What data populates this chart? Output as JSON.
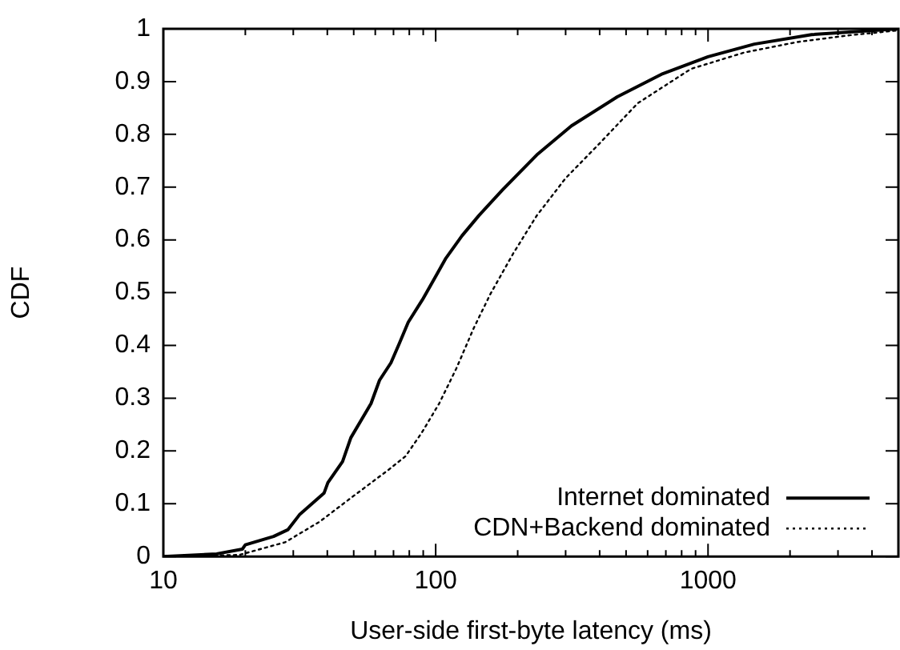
{
  "chart_data": {
    "type": "line",
    "xlabel": "User-side first-byte latency (ms)",
    "ylabel": "CDF",
    "log": "x",
    "xlim": [
      10,
      5000
    ],
    "xticks": [
      10,
      {
        "value": 20,
        "label": null
      },
      {
        "value": 30,
        "label": null
      },
      {
        "value": 40,
        "label": null
      },
      {
        "value": 50,
        "label": null
      },
      {
        "value": 60,
        "label": null
      },
      {
        "value": 70,
        "label": null
      },
      {
        "value": 80,
        "label": null
      },
      {
        "value": 90,
        "label": null
      },
      100,
      {
        "value": 200,
        "label": null
      },
      {
        "value": 300,
        "label": null
      },
      {
        "value": 400,
        "label": null
      },
      {
        "value": 500,
        "label": null
      },
      {
        "value": 600,
        "label": null
      },
      {
        "value": 700,
        "label": null
      },
      {
        "value": 800,
        "label": null
      },
      {
        "value": 900,
        "label": null
      },
      1000,
      {
        "value": 2000,
        "label": null
      },
      {
        "value": 3000,
        "label": null
      },
      {
        "value": 4000,
        "label": null
      }
    ],
    "ylim": [
      0,
      1
    ],
    "yticks": [
      0,
      0.1,
      0.2,
      0.3,
      0.4,
      0.5,
      0.6,
      0.7,
      0.8,
      0.9,
      1
    ],
    "grid": false,
    "legend": "bottom right",
    "marker": "none",
    "series": [
      {
        "name": "Internet dominated",
        "color": "#000000",
        "line_style": "solid",
        "x": [
          10,
          15.7,
          19.5,
          20,
          25.4,
          28.7,
          31.6,
          38.9,
          40.2,
          45.5,
          48.8,
          57.9,
          62.2,
          68.5,
          73.7,
          79.3,
          89.5,
          100,
          108.6,
          125,
          144,
          176,
          235,
          315,
          464,
          682,
          1000,
          1478,
          2400,
          5000
        ],
        "values": [
          0,
          0.005,
          0.014,
          0.022,
          0.038,
          0.051,
          0.079,
          0.12,
          0.14,
          0.18,
          0.225,
          0.29,
          0.334,
          0.367,
          0.405,
          0.444,
          0.487,
          0.531,
          0.564,
          0.608,
          0.646,
          0.695,
          0.761,
          0.816,
          0.871,
          0.915,
          0.947,
          0.971,
          0.989,
          1
        ]
      },
      {
        "name": "CDN+Backend dominated",
        "color": "#000000",
        "line_style": "dotted",
        "x": [
          10,
          19,
          28,
          37.5,
          50,
          67,
          77.5,
          89,
          103,
          119,
          138,
          159,
          193,
          235,
          300,
          400,
          552,
          865,
          1356,
          2128,
          3334,
          5000
        ],
        "values": [
          0,
          0.003,
          0.027,
          0.066,
          0.115,
          0.164,
          0.19,
          0.235,
          0.29,
          0.356,
          0.433,
          0.498,
          0.575,
          0.646,
          0.717,
          0.783,
          0.859,
          0.924,
          0.955,
          0.975,
          0.988,
          0.997
        ]
      }
    ]
  }
}
